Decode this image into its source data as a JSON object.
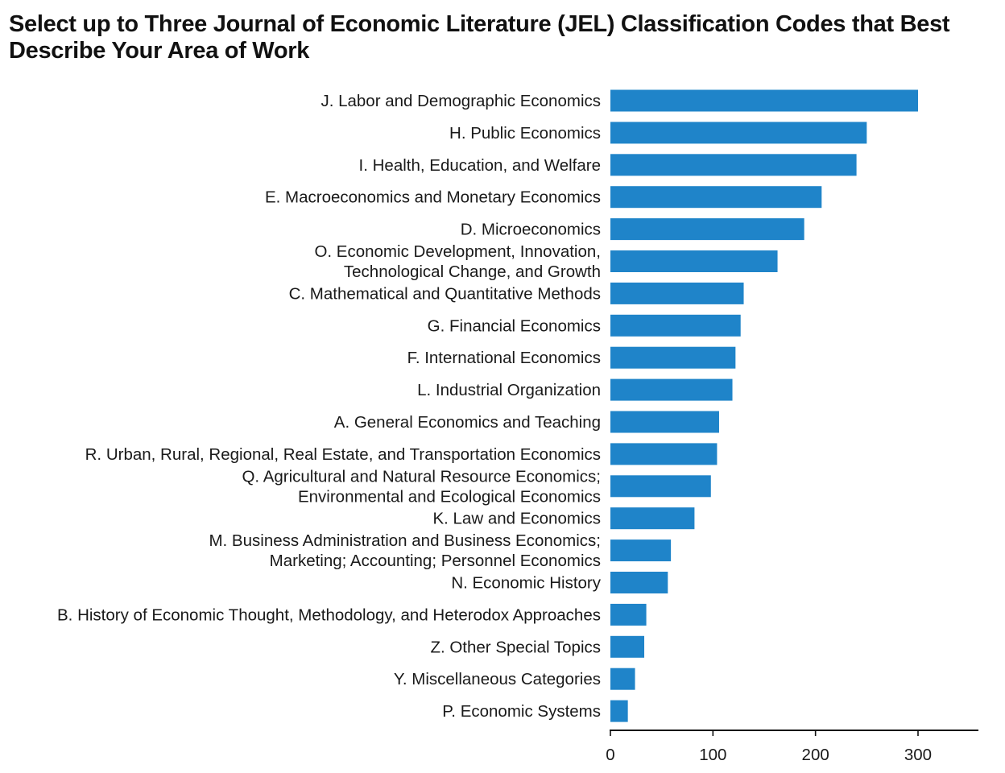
{
  "chart_data": {
    "type": "bar",
    "orientation": "horizontal",
    "title": "Select up to Three Journal of Economic Literature (JEL) Classification Codes that Best Describe Your Area of Work",
    "xlabel": "",
    "ylabel": "",
    "xlim": [
      0,
      360
    ],
    "x_ticks": [
      0,
      100,
      200,
      300
    ],
    "grid": false,
    "legend": "none",
    "bar_color": "#1f84c9",
    "categories": [
      [
        "J. Labor and Demographic Economics"
      ],
      [
        "H. Public Economics"
      ],
      [
        "I. Health, Education, and Welfare"
      ],
      [
        "E. Macroeconomics and Monetary Economics"
      ],
      [
        "D. Microeconomics"
      ],
      [
        "O. Economic Development, Innovation,",
        "Technological Change, and Growth"
      ],
      [
        "C. Mathematical and Quantitative Methods"
      ],
      [
        "G. Financial Economics"
      ],
      [
        "F. International Economics"
      ],
      [
        "L. Industrial Organization"
      ],
      [
        "A. General Economics and Teaching"
      ],
      [
        "R. Urban, Rural, Regional, Real Estate, and Transportation Economics"
      ],
      [
        "Q. Agricultural and Natural Resource Economics;",
        "Environmental and Ecological Economics"
      ],
      [
        "K. Law and Economics"
      ],
      [
        "M. Business Administration and Business Economics;",
        "Marketing; Accounting; Personnel Economics"
      ],
      [
        "N. Economic History"
      ],
      [
        "B. History of Economic Thought, Methodology, and Heterodox Approaches"
      ],
      [
        "Z. Other Special Topics"
      ],
      [
        "Y. Miscellaneous Categories"
      ],
      [
        "P. Economic Systems"
      ]
    ],
    "values": [
      300,
      250,
      240,
      206,
      189,
      163,
      130,
      127,
      122,
      119,
      106,
      104,
      98,
      82,
      59,
      56,
      35,
      33,
      24,
      17
    ]
  }
}
